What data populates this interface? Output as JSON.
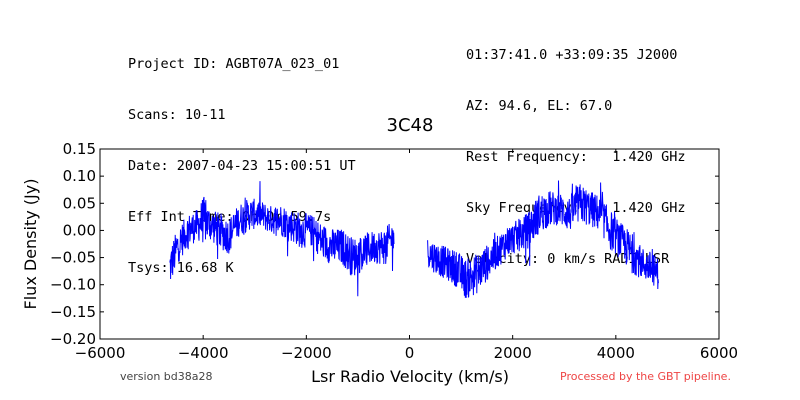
{
  "header_left": [
    "Project ID: AGBT07A_023_01",
    "Scans: 10-11",
    "Date: 2007-04-23 15:00:51 UT",
    "Eff Int Time: 0h 0m 59.7s",
    "Tsys: 16.68 K"
  ],
  "header_right": [
    "01:37:41.0 +33:09:35 J2000",
    "AZ: 94.6, EL: 67.0",
    "Rest Frequency:   1.420 GHz",
    "Sky Frequency:    1.420 GHz",
    "Velocity: 0 km/s RADI-LSR"
  ],
  "footer": {
    "version": "version bd38a28",
    "pipeline": "Processed by the GBT pipeline."
  },
  "colors": {
    "series": "#0000ff",
    "pipeline_text": "#ee4444"
  },
  "chart_data": {
    "type": "line",
    "title": "3C48",
    "xlabel": "Lsr Radio Velocity (km/s)",
    "ylabel": "Flux Density (Jy)",
    "xlim": [
      -6000,
      6000
    ],
    "ylim": [
      -0.2,
      0.15
    ],
    "xticks": [
      -6000,
      -4000,
      -2000,
      0,
      2000,
      4000,
      6000
    ],
    "xtick_labels": [
      "−6000",
      "−4000",
      "−2000",
      "0",
      "2000",
      "4000",
      "6000"
    ],
    "yticks": [
      -0.2,
      -0.15,
      -0.1,
      -0.05,
      0.0,
      0.05,
      0.1,
      0.15
    ],
    "ytick_labels": [
      "−0.20",
      "−0.15",
      "−0.10",
      "−0.05",
      "0.00",
      "0.05",
      "0.10",
      "0.15"
    ],
    "grid": false,
    "legend": "none",
    "series": [
      {
        "segments": [
          {
            "x": [
              -4650,
              -4500,
              -4300,
              -4100,
              -4000,
              -3850,
              -3700,
              -3500,
              -3300,
              -3100,
              -2900,
              -2700,
              -2500,
              -2300,
              -2100,
              -1900,
              -1700,
              -1500,
              -1300,
              -1100,
              -900,
              -700,
              -500,
              -300
            ],
            "y": [
              -0.07,
              -0.03,
              0.0,
              0.01,
              0.02,
              0.01,
              0.0,
              -0.01,
              0.02,
              0.03,
              0.03,
              0.02,
              0.02,
              0.01,
              0.0,
              0.0,
              -0.02,
              -0.03,
              -0.03,
              -0.05,
              -0.04,
              -0.03,
              -0.03,
              -0.01
            ],
            "amp": [
              0.05,
              0.045,
              0.04,
              0.04,
              0.06,
              0.04,
              0.045,
              0.045,
              0.04,
              0.04,
              0.035,
              0.035,
              0.04,
              0.04,
              0.045,
              0.04,
              0.045,
              0.045,
              0.045,
              0.05,
              0.045,
              0.04,
              0.045,
              0.04
            ]
          },
          {
            "x": [
              350,
              500,
              700,
              900,
              1100,
              1300,
              1500,
              1700,
              1900,
              2100,
              2300,
              2500,
              2700,
              2900,
              3100,
              3300,
              3500,
              3700,
              3900,
              4100,
              4300,
              4500,
              4700,
              4830
            ],
            "y": [
              -0.04,
              -0.05,
              -0.06,
              -0.07,
              -0.09,
              -0.08,
              -0.06,
              -0.04,
              -0.02,
              -0.01,
              0.0,
              0.03,
              0.04,
              0.04,
              0.03,
              0.05,
              0.04,
              0.03,
              0.0,
              -0.02,
              -0.04,
              -0.06,
              -0.07,
              -0.08
            ],
            "amp": [
              0.035,
              0.04,
              0.04,
              0.045,
              0.05,
              0.05,
              0.045,
              0.04,
              0.04,
              0.04,
              0.045,
              0.05,
              0.045,
              0.04,
              0.045,
              0.05,
              0.045,
              0.045,
              0.05,
              0.045,
              0.05,
              0.04,
              0.04,
              0.04
            ]
          }
        ]
      }
    ]
  }
}
